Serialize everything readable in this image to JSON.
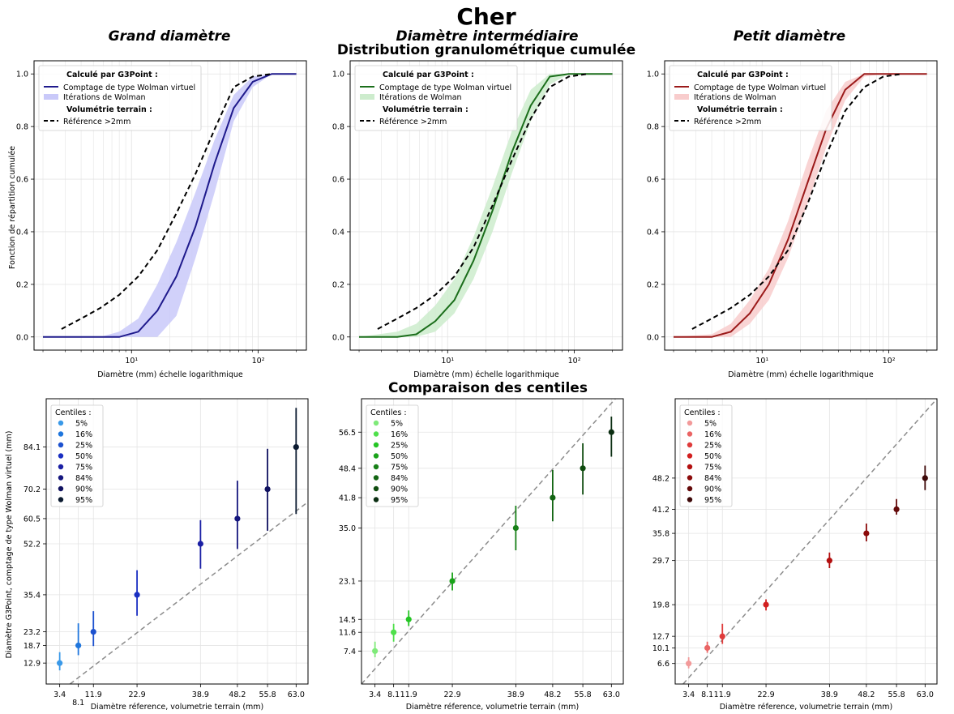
{
  "figure": {
    "title": "Cher",
    "section_top": "Distribution granulométrique cumulée",
    "section_bottom": "Comparaison des centiles"
  },
  "colors": {
    "grand": "#1f1a8c",
    "grand_band": "#c9c9f9",
    "inter": "#1b6e1b",
    "inter_band": "#cdeccd",
    "petit": "#9b1a1a",
    "petit_band": "#f8cccc",
    "reference": "#000000",
    "diagonal": "#8c8c8c",
    "grid": "#e4e4e4"
  },
  "chart_data": [
    {
      "type": "line",
      "id": "cdf_grand",
      "title": "Grand diamètre",
      "xlabel": "Diamètre (mm) échelle logarithmique",
      "ylabel": "Fonction de répartition cumulée",
      "xscale": "log",
      "xlim": [
        1.7,
        240
      ],
      "ylim": [
        -0.05,
        1.05
      ],
      "yticks": [
        "0.0",
        "0.2",
        "0.4",
        "0.6",
        "0.8",
        "1.0"
      ],
      "xticks": [
        "10¹",
        "10²"
      ],
      "grid": true,
      "legend_position": "top-left",
      "legend": {
        "heading_calc": "Calculé par G3Point :",
        "line_label": "Comptage de type Wolman virtuel",
        "band_label": "Itérations de Wolman",
        "heading_vol": "Volumétrie terrain :",
        "ref_label": "Référence >2mm"
      },
      "series": [
        {
          "name": "Comptage de type Wolman virtuel",
          "x": [
            2,
            4,
            5.66,
            8,
            11.3,
            16,
            22.6,
            32,
            45.3,
            64,
            90.5,
            128,
            200
          ],
          "y": [
            0,
            0,
            0,
            0,
            0.02,
            0.1,
            0.23,
            0.42,
            0.66,
            0.87,
            0.97,
            1.0,
            1.0
          ]
        },
        {
          "name": "Itérations de Wolman",
          "x": [
            2,
            4,
            5.66,
            8,
            11.3,
            16,
            22.6,
            32,
            45.3,
            64,
            90.5,
            128,
            200
          ],
          "lower": [
            0,
            0,
            0,
            0,
            0,
            0,
            0.08,
            0.3,
            0.55,
            0.82,
            0.95,
            1.0,
            1.0
          ],
          "upper": [
            0,
            0,
            0,
            0.02,
            0.07,
            0.2,
            0.36,
            0.55,
            0.75,
            0.92,
            0.99,
            1.0,
            1.0
          ]
        },
        {
          "name": "Référence >2mm",
          "x": [
            2.8,
            4,
            5.66,
            8,
            11.3,
            16,
            22.6,
            32,
            45.3,
            64,
            90.5,
            128
          ],
          "y": [
            0.03,
            0.07,
            0.11,
            0.16,
            0.23,
            0.33,
            0.47,
            0.62,
            0.79,
            0.95,
            0.99,
            1.0
          ]
        }
      ]
    },
    {
      "type": "line",
      "id": "cdf_inter",
      "title": "Diamètre intermédiaire",
      "xlabel": "Diamètre (mm) échelle logarithmique",
      "ylabel": "",
      "xscale": "log",
      "xlim": [
        1.7,
        240
      ],
      "ylim": [
        -0.05,
        1.05
      ],
      "yticks": [
        "0.0",
        "0.2",
        "0.4",
        "0.6",
        "0.8",
        "1.0"
      ],
      "xticks": [
        "10¹",
        "10²"
      ],
      "grid": true,
      "legend_position": "top-left",
      "legend": {
        "heading_calc": "Calculé par G3Point :",
        "line_label": "Comptage de type Wolman virtuel",
        "band_label": "Itérations de Wolman",
        "heading_vol": "Volumétrie terrain :",
        "ref_label": "Référence >2mm"
      },
      "series": [
        {
          "name": "Comptage de type Wolman virtuel",
          "x": [
            2,
            4,
            5.66,
            8,
            11.3,
            16,
            22.6,
            32,
            45.3,
            64,
            90.5,
            128,
            200
          ],
          "y": [
            0,
            0,
            0.01,
            0.06,
            0.14,
            0.29,
            0.48,
            0.7,
            0.88,
            0.99,
            1.0,
            1.0,
            1.0
          ]
        },
        {
          "name": "Itérations de Wolman",
          "x": [
            2,
            4,
            5.66,
            8,
            11.3,
            16,
            22.6,
            32,
            45.3,
            64,
            90.5,
            128,
            200
          ],
          "lower": [
            0,
            0,
            0,
            0.02,
            0.09,
            0.22,
            0.4,
            0.62,
            0.82,
            0.96,
            1.0,
            1.0,
            1.0
          ],
          "upper": [
            0,
            0.02,
            0.05,
            0.12,
            0.22,
            0.38,
            0.57,
            0.78,
            0.94,
            1.0,
            1.0,
            1.0,
            1.0
          ]
        },
        {
          "name": "Référence >2mm",
          "x": [
            2.8,
            4,
            5.66,
            8,
            11.3,
            16,
            22.6,
            32,
            45.3,
            64,
            90.5,
            128
          ],
          "y": [
            0.03,
            0.07,
            0.11,
            0.16,
            0.23,
            0.34,
            0.5,
            0.67,
            0.83,
            0.95,
            0.99,
            1.0
          ]
        }
      ]
    },
    {
      "type": "line",
      "id": "cdf_petit",
      "title": "Petit diamètre",
      "xlabel": "Diamètre (mm) échelle logarithmique",
      "ylabel": "",
      "xscale": "log",
      "xlim": [
        1.7,
        240
      ],
      "ylim": [
        -0.05,
        1.05
      ],
      "yticks": [
        "0.0",
        "0.2",
        "0.4",
        "0.6",
        "0.8",
        "1.0"
      ],
      "xticks": [
        "10¹",
        "10²"
      ],
      "grid": true,
      "legend_position": "top-left",
      "legend": {
        "heading_calc": "Calculé par G3Point :",
        "line_label": "Comptage de type Wolman virtuel",
        "band_label": "Itérations de Wolman",
        "heading_vol": "Volumétrie terrain :",
        "ref_label": "Référence >2mm"
      },
      "series": [
        {
          "name": "Comptage de type Wolman virtuel",
          "x": [
            2,
            4,
            5.66,
            8,
            11.3,
            16,
            22.6,
            32,
            45.3,
            64,
            90.5,
            128,
            200
          ],
          "y": [
            0,
            0,
            0.02,
            0.09,
            0.2,
            0.37,
            0.58,
            0.79,
            0.94,
            1.0,
            1.0,
            1.0,
            1.0
          ]
        },
        {
          "name": "Itérations de Wolman",
          "x": [
            2,
            4,
            5.66,
            8,
            11.3,
            16,
            22.6,
            32,
            45.3,
            64,
            90.5,
            128,
            200
          ],
          "lower": [
            0,
            0,
            0,
            0.05,
            0.14,
            0.3,
            0.5,
            0.72,
            0.9,
            0.99,
            1.0,
            1.0,
            1.0
          ],
          "upper": [
            0,
            0.01,
            0.05,
            0.14,
            0.26,
            0.44,
            0.66,
            0.86,
            0.97,
            1.0,
            1.0,
            1.0,
            1.0
          ]
        },
        {
          "name": "Référence >2mm",
          "x": [
            2.8,
            4,
            5.66,
            8,
            11.3,
            16,
            22.6,
            32,
            45.3,
            64,
            90.5,
            128
          ],
          "y": [
            0.03,
            0.07,
            0.11,
            0.16,
            0.23,
            0.33,
            0.5,
            0.69,
            0.86,
            0.95,
            0.99,
            1.0
          ]
        }
      ]
    },
    {
      "type": "scatter",
      "id": "cent_grand",
      "xlabel": "Diamètre réference, volumetrie terrain (mm)",
      "ylabel": "Diamètre G3Point, comptage de type Wolman virtuel (mm)",
      "xlim": [
        0,
        66
      ],
      "ylim": [
        6,
        100
      ],
      "xticks": [
        "3.4",
        "8.1",
        "11.9",
        "22.9",
        "38.9",
        "48.2",
        "55.8",
        "63.0"
      ],
      "xtick_values": [
        3.4,
        8.1,
        11.9,
        22.9,
        38.9,
        48.2,
        55.8,
        63.0
      ],
      "yticks": [
        "12.9",
        "18.7",
        "23.2",
        "35.4",
        "52.2",
        "60.5",
        "70.2",
        "84.1"
      ],
      "ytick_values": [
        12.9,
        18.7,
        23.2,
        35.4,
        52.2,
        60.5,
        70.2,
        84.1
      ],
      "legend_title": "Centiles :",
      "legend_position": "top-left",
      "grid": true,
      "series": [
        {
          "name": "5%",
          "x": 3.4,
          "y": 12.9,
          "lo": 10.5,
          "hi": 16.5,
          "color": "#3a99e8"
        },
        {
          "name": "16%",
          "x": 8.1,
          "y": 18.7,
          "lo": 15.5,
          "hi": 26.0,
          "color": "#1f76dd"
        },
        {
          "name": "25%",
          "x": 11.9,
          "y": 23.2,
          "lo": 18.5,
          "hi": 30.0,
          "color": "#1c51cf"
        },
        {
          "name": "50%",
          "x": 22.9,
          "y": 35.4,
          "lo": 28.5,
          "hi": 43.5,
          "color": "#1a2fc2"
        },
        {
          "name": "75%",
          "x": 38.9,
          "y": 52.2,
          "lo": 44.0,
          "hi": 60.0,
          "color": "#1a1fa4"
        },
        {
          "name": "84%",
          "x": 48.2,
          "y": 60.5,
          "lo": 50.5,
          "hi": 73.0,
          "color": "#15167e"
        },
        {
          "name": "90%",
          "x": 55.8,
          "y": 70.2,
          "lo": 56.5,
          "hi": 83.5,
          "color": "#101160"
        },
        {
          "name": "95%",
          "x": 63.0,
          "y": 84.1,
          "lo": 62.0,
          "hi": 97.0,
          "color": "#0b1a30"
        }
      ]
    },
    {
      "type": "scatter",
      "id": "cent_inter",
      "xlabel": "Diamètre réference, volumetrie terrain (mm)",
      "ylabel": "",
      "xlim": [
        0,
        66
      ],
      "ylim": [
        0,
        64
      ],
      "xticks": [
        "3.4",
        "8.1",
        "11.9",
        "22.9",
        "38.9",
        "48.2",
        "55.8",
        "63.0"
      ],
      "xtick_values": [
        3.4,
        8.1,
        11.9,
        22.9,
        38.9,
        48.2,
        55.8,
        63.0
      ],
      "yticks": [
        "7.4",
        "11.6",
        "14.5",
        "23.1",
        "35.0",
        "41.8",
        "48.4",
        "56.5"
      ],
      "ytick_values": [
        7.4,
        11.6,
        14.5,
        23.1,
        35.0,
        41.8,
        48.4,
        56.5
      ],
      "legend_title": "Centiles :",
      "legend_position": "top-left",
      "grid": true,
      "series": [
        {
          "name": "5%",
          "x": 3.4,
          "y": 7.4,
          "lo": 6.0,
          "hi": 9.5,
          "color": "#7fea79"
        },
        {
          "name": "16%",
          "x": 8.1,
          "y": 11.6,
          "lo": 9.5,
          "hi": 13.5,
          "color": "#4fe04b"
        },
        {
          "name": "25%",
          "x": 11.9,
          "y": 14.5,
          "lo": 13.0,
          "hi": 16.5,
          "color": "#25c525"
        },
        {
          "name": "50%",
          "x": 22.9,
          "y": 23.1,
          "lo": 21.0,
          "hi": 25.0,
          "color": "#1aa31a"
        },
        {
          "name": "75%",
          "x": 38.9,
          "y": 35.0,
          "lo": 30.0,
          "hi": 40.0,
          "color": "#178017"
        },
        {
          "name": "84%",
          "x": 48.2,
          "y": 41.8,
          "lo": 36.5,
          "hi": 48.0,
          "color": "#136513"
        },
        {
          "name": "90%",
          "x": 55.8,
          "y": 48.4,
          "lo": 42.5,
          "hi": 54.0,
          "color": "#0f4c0f"
        },
        {
          "name": "95%",
          "x": 63.0,
          "y": 56.5,
          "lo": 51.0,
          "hi": 60.0,
          "color": "#0b2e12"
        }
      ]
    },
    {
      "type": "scatter",
      "id": "cent_petit",
      "xlabel": "Diamètre réference, volumetrie terrain (mm)",
      "ylabel": "",
      "xlim": [
        0,
        66
      ],
      "ylim": [
        2,
        66
      ],
      "xticks": [
        "3.4",
        "8.1",
        "11.9",
        "22.9",
        "38.9",
        "48.2",
        "55.8",
        "63.0"
      ],
      "xtick_values": [
        3.4,
        8.1,
        11.9,
        22.9,
        38.9,
        48.2,
        55.8,
        63.0
      ],
      "yticks": [
        "6.6",
        "10.1",
        "12.7",
        "19.8",
        "29.7",
        "35.8",
        "41.2",
        "48.2"
      ],
      "ytick_values": [
        6.6,
        10.1,
        12.7,
        19.8,
        29.7,
        35.8,
        41.2,
        48.2
      ],
      "legend_title": "Centiles :",
      "legend_position": "top-left",
      "grid": true,
      "series": [
        {
          "name": "5%",
          "x": 3.4,
          "y": 6.6,
          "lo": 5.5,
          "hi": 8.0,
          "color": "#f29a9a"
        },
        {
          "name": "16%",
          "x": 8.1,
          "y": 10.1,
          "lo": 9.0,
          "hi": 11.5,
          "color": "#ea6464"
        },
        {
          "name": "25%",
          "x": 11.9,
          "y": 12.7,
          "lo": 11.0,
          "hi": 15.5,
          "color": "#df3b3b"
        },
        {
          "name": "50%",
          "x": 22.9,
          "y": 19.8,
          "lo": 18.5,
          "hi": 21.0,
          "color": "#d21f1f"
        },
        {
          "name": "75%",
          "x": 38.9,
          "y": 29.7,
          "lo": 28.0,
          "hi": 31.5,
          "color": "#b30f0f"
        },
        {
          "name": "84%",
          "x": 48.2,
          "y": 35.8,
          "lo": 34.0,
          "hi": 38.0,
          "color": "#8c0b0b"
        },
        {
          "name": "90%",
          "x": 55.8,
          "y": 41.2,
          "lo": 40.0,
          "hi": 43.5,
          "color": "#640a0a"
        },
        {
          "name": "95%",
          "x": 63.0,
          "y": 48.2,
          "lo": 45.5,
          "hi": 51.0,
          "color": "#3e0909"
        }
      ]
    }
  ]
}
